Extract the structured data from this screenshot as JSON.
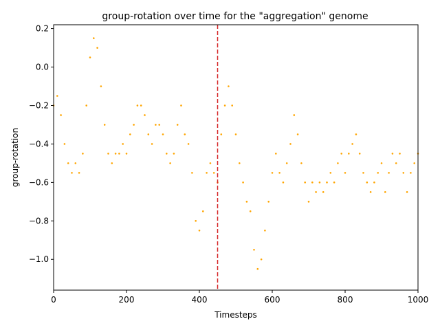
{
  "chart_data": {
    "type": "scatter",
    "title": "group-rotation over time for the \"aggregation\" genome",
    "xlabel": "Timesteps",
    "ylabel": "group-rotation",
    "xlim": [
      0,
      1000
    ],
    "ylim": [
      -1.16,
      0.22
    ],
    "xticks": [
      0,
      200,
      400,
      600,
      800,
      1000
    ],
    "yticks": [
      -1.0,
      -0.8,
      -0.6,
      -0.4,
      -0.2,
      0.0,
      0.2
    ],
    "grid": false,
    "point_color": "#ffa500",
    "vline": {
      "x": 450,
      "color": "#d62728",
      "style": "dashed"
    },
    "series": [
      {
        "x": [
          0,
          10,
          20,
          30,
          40,
          50,
          60,
          70,
          80,
          90,
          100,
          110,
          120,
          130,
          140,
          150,
          160,
          170,
          180,
          190,
          200,
          210,
          220,
          230,
          240,
          250,
          260,
          270,
          280,
          290,
          300,
          310,
          320,
          330,
          340,
          350,
          360,
          370,
          380,
          390,
          400,
          410,
          420,
          430,
          440,
          450,
          460,
          470,
          480,
          490,
          500,
          510,
          520,
          530,
          540,
          550,
          560,
          570,
          580,
          590,
          600,
          610,
          620,
          630,
          640,
          650,
          660,
          670,
          680,
          690,
          700,
          710,
          720,
          730,
          740,
          750,
          760,
          770,
          780,
          790,
          800,
          810,
          820,
          830,
          840,
          850,
          860,
          870,
          880,
          890,
          900,
          910,
          920,
          930,
          940,
          950,
          960,
          970,
          980,
          990,
          1000
        ],
        "y": [
          -0.2,
          -0.15,
          -0.25,
          -0.4,
          -0.5,
          -0.55,
          -0.5,
          -0.55,
          -0.45,
          -0.2,
          0.05,
          0.15,
          0.1,
          -0.1,
          -0.3,
          -0.45,
          -0.5,
          -0.45,
          -0.45,
          -0.4,
          -0.45,
          -0.35,
          -0.3,
          -0.2,
          -0.2,
          -0.25,
          -0.35,
          -0.4,
          -0.3,
          -0.3,
          -0.35,
          -0.45,
          -0.5,
          -0.45,
          -0.3,
          -0.2,
          -0.35,
          -0.4,
          -0.55,
          -0.8,
          -0.85,
          -0.75,
          -0.55,
          -0.5,
          -0.55,
          -0.6,
          -0.35,
          -0.2,
          -0.1,
          -0.2,
          -0.35,
          -0.5,
          -0.6,
          -0.7,
          -0.75,
          -0.95,
          -1.05,
          -1.0,
          -0.85,
          -0.7,
          -0.55,
          -0.45,
          -0.55,
          -0.6,
          -0.5,
          -0.4,
          -0.25,
          -0.35,
          -0.5,
          -0.6,
          -0.7,
          -0.6,
          -0.65,
          -0.6,
          -0.65,
          -0.6,
          -0.55,
          -0.6,
          -0.5,
          -0.45,
          -0.55,
          -0.45,
          -0.4,
          -0.35,
          -0.45,
          -0.55,
          -0.6,
          -0.65,
          -0.6,
          -0.55,
          -0.5,
          -0.65,
          -0.55,
          -0.45,
          -0.5,
          -0.45,
          -0.55,
          -0.65,
          -0.55,
          -0.5,
          -0.45
        ]
      }
    ]
  }
}
